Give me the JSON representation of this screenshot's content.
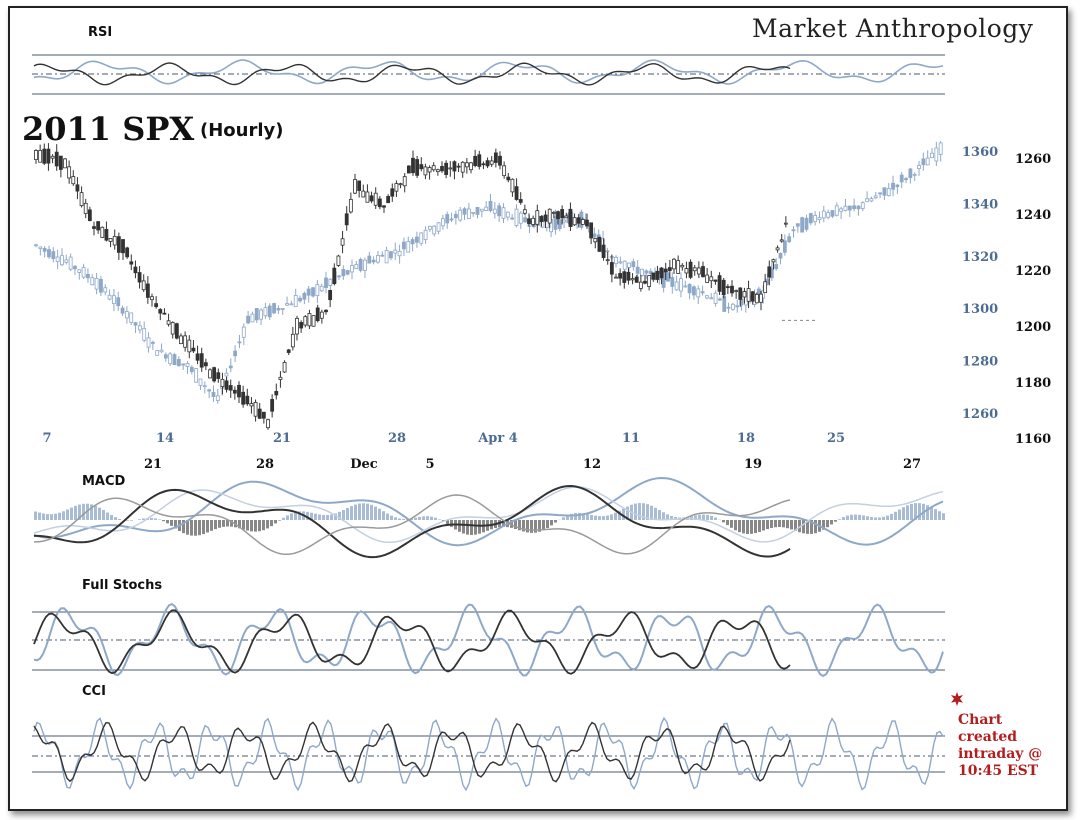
{
  "brand": "Market Anthropology",
  "title": "2011 SPX",
  "subtitle": "(Hourly)",
  "panels": {
    "rsi": "RSI",
    "macd": "MACD",
    "stochs": "Full Stochs",
    "cci": "CCI"
  },
  "note": "Chart created intraday @ 10:45 EST",
  "colors": {
    "dark_series": "#333333",
    "light_series": "#8ea8c8",
    "axis_blue": "#4c6c93",
    "note_red": "#b21d1d"
  },
  "chart_data": {
    "type": "candlestick",
    "title": "2011 SPX",
    "subtitle": "(Hourly)",
    "y_axis_left": {
      "series": "light",
      "ticks": [
        1260,
        1280,
        1300,
        1320,
        1340,
        1360
      ]
    },
    "y_axis_right": {
      "series": "dark",
      "ticks": [
        1160,
        1180,
        1200,
        1220,
        1240,
        1260
      ]
    },
    "x_axis_top": {
      "series": "light",
      "ticks": [
        "7",
        "14",
        "21",
        "28",
        "Apr 4",
        "11",
        "18",
        "25"
      ]
    },
    "x_axis_bottom": {
      "series": "dark",
      "ticks": [
        "21",
        "28",
        "Dec",
        "5",
        "12",
        "19",
        "27"
      ]
    },
    "series": [
      {
        "tone": "dark",
        "x_tick_index": [
          0,
          0.5,
          1,
          1.5,
          2,
          2.5,
          3,
          3.5,
          4,
          4.5,
          5,
          5.5,
          6,
          6.5,
          7,
          7.5,
          8,
          8.5,
          9,
          9.5,
          10,
          10.5,
          11,
          11.5,
          12,
          12.5,
          13
        ],
        "close": [
          1262,
          1258,
          1236,
          1228,
          1210,
          1196,
          1184,
          1176,
          1166,
          1200,
          1205,
          1250,
          1243,
          1257,
          1256,
          1258,
          1259,
          1238,
          1240,
          1237,
          1218,
          1215,
          1222,
          1219,
          1212,
          1210,
          1240
        ]
      },
      {
        "tone": "light",
        "x_tick_index": [
          0,
          0.5,
          1,
          1.5,
          2,
          2.5,
          3,
          3.5,
          4,
          4.5,
          5,
          5.5,
          6,
          6.5,
          7,
          7.5,
          8,
          8.5,
          9,
          9.5,
          10,
          10.5,
          11,
          11.5,
          12,
          12.5,
          13,
          13.5,
          14,
          14.5,
          15
        ],
        "close": [
          1324,
          1318,
          1310,
          1298,
          1284,
          1278,
          1265,
          1296,
          1300,
          1305,
          1312,
          1318,
          1322,
          1330,
          1336,
          1338,
          1334,
          1332,
          1334,
          1320,
          1314,
          1310,
          1306,
          1300,
          1306,
          1330,
          1336,
          1338,
          1344,
          1352,
          1362
        ]
      }
    ],
    "reference_line": 1202,
    "indicator_panels": [
      "RSI",
      "MACD",
      "Full Stochs",
      "CCI"
    ]
  }
}
